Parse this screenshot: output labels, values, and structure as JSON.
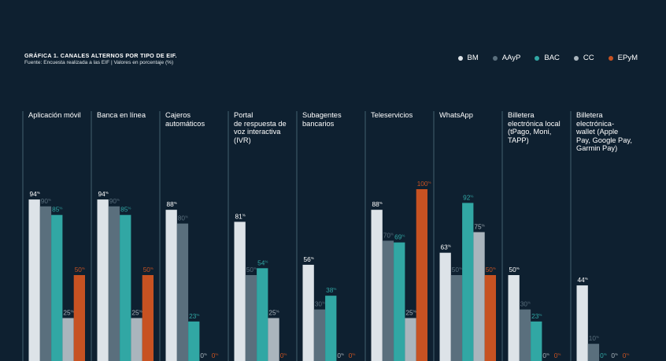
{
  "header": {
    "title": "GRÁFICA 1. CANALES ALTERNOS POR TIPO DE EIF.",
    "subtitle": "Fuente: Encuesta realizada a las EIF  |  Valores en porcentaje (%)"
  },
  "colors": {
    "BM": "#dde3e8",
    "AAyP": "#5a6f7d",
    "BAC": "#31a7a4",
    "CC": "#aab5bd",
    "EPyM": "#c75222",
    "background": "#0e2030",
    "divider": "#52707f"
  },
  "chart_data": {
    "type": "bar",
    "title": "GRÁFICA 1. CANALES ALTERNOS POR TIPO DE EIF.",
    "ylim": [
      0,
      100
    ],
    "legend_position": "top-right",
    "grid": false,
    "categories": [
      "Aplicación móvil",
      "Banca en línea",
      "Cajeros\nautomáticos",
      "Portal\nde respuesta de\nvoz interactiva\n(IVR)",
      "Subagentes\nbancarios",
      "Teleservicios",
      "WhatsApp",
      "Billetera\nelectrónica local\n(tPago, Moni,\nTAPP)",
      "Billetera\nelectrónica-\nwallet (Apple\nPay, Google Pay,\nGarmin Pay)"
    ],
    "series": [
      {
        "name": "BM",
        "values": [
          94,
          94,
          88,
          81,
          56,
          88,
          63,
          50,
          44
        ]
      },
      {
        "name": "AAyP",
        "values": [
          90,
          90,
          80,
          50,
          30,
          70,
          50,
          30,
          10
        ]
      },
      {
        "name": "BAC",
        "values": [
          85,
          85,
          23,
          54,
          38,
          69,
          92,
          23,
          0
        ]
      },
      {
        "name": "CC",
        "values": [
          25,
          25,
          0,
          25,
          0,
          25,
          75,
          0,
          0
        ]
      },
      {
        "name": "EPyM",
        "values": [
          50,
          50,
          0,
          0,
          0,
          100,
          50,
          0,
          0
        ]
      }
    ],
    "value_suffix": "%"
  }
}
